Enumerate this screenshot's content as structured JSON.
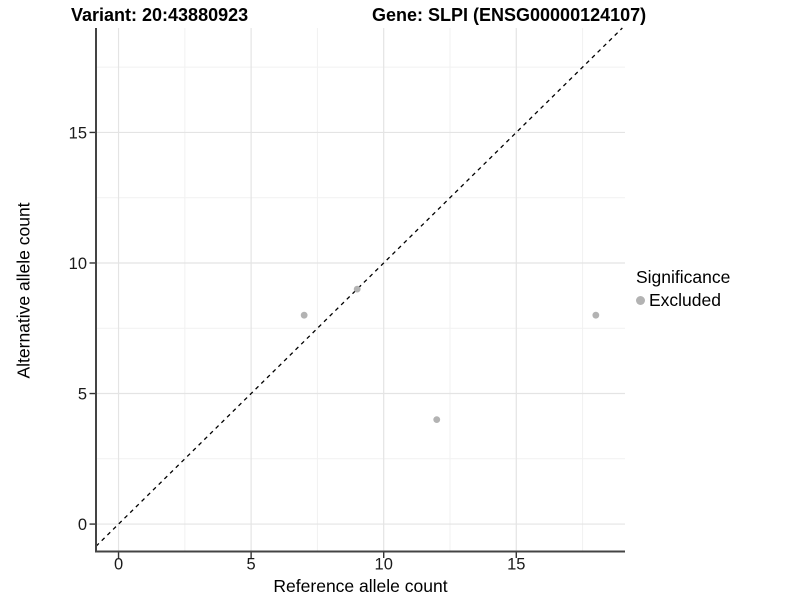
{
  "chart_data": {
    "type": "scatter",
    "title_left": "Variant: 20:43880923",
    "title_right": "Gene: SLPI (ENSG00000124107)",
    "xlabel": "Reference allele count",
    "ylabel": "Alternative allele count",
    "xlim": [
      -0.85,
      19.1
    ],
    "ylim": [
      -1.05,
      19.0
    ],
    "x_major_ticks": [
      0,
      5,
      10,
      15
    ],
    "y_major_ticks": [
      0,
      5,
      10,
      15
    ],
    "x_minor_ticks": [
      2.5,
      7.5,
      12.5,
      17.5
    ],
    "y_minor_ticks": [
      2.5,
      7.5,
      12.5,
      17.5
    ],
    "identity_line": {
      "equation": "y = x",
      "style": "dashed",
      "color": "#000000"
    },
    "series": [
      {
        "name": "Excluded",
        "color": "#b3b3b3",
        "points": [
          {
            "x": 7,
            "y": 8
          },
          {
            "x": 9,
            "y": 9
          },
          {
            "x": 12,
            "y": 4
          },
          {
            "x": 18,
            "y": 8
          }
        ]
      }
    ],
    "legend": {
      "title": "Significance",
      "position": "right",
      "items": [
        {
          "label": "Excluded",
          "color": "#b3b3b3"
        }
      ]
    },
    "colors": {
      "grid_major": "#e4e4e4",
      "grid_minor": "#f1f1f1",
      "axis_line": "#444444",
      "tick_mark": "#333333",
      "tick_label": "#1a1a1a",
      "background": "#ffffff"
    }
  }
}
